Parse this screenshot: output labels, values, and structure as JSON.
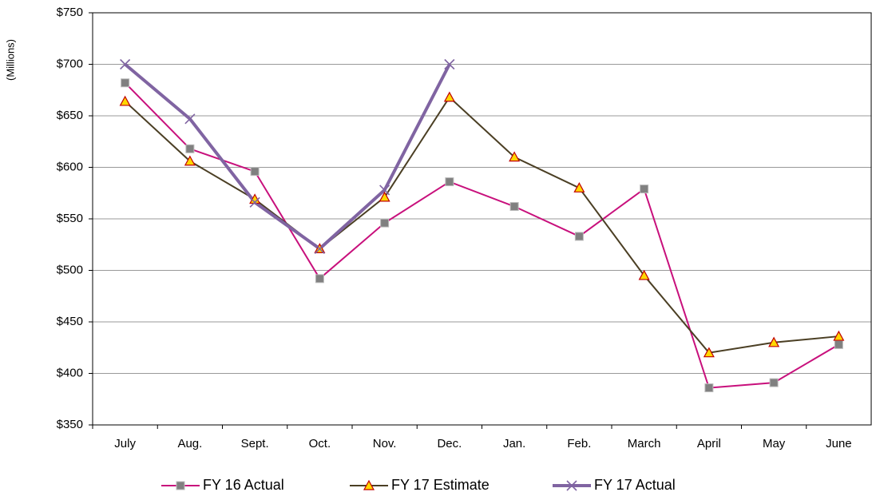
{
  "chart_data": {
    "type": "line",
    "y_label": "(Millions)",
    "categories": [
      "July",
      "Aug.",
      "Sept.",
      "Oct.",
      "Nov.",
      "Dec.",
      "Jan.",
      "Feb.",
      "March",
      "April",
      "May",
      "June"
    ],
    "series": [
      {
        "name": "FY 16 Actual",
        "color": "#c8107c",
        "marker": "square",
        "marker_color": "#808080",
        "values": [
          682,
          618,
          596,
          492,
          546,
          586,
          562,
          533,
          579,
          386,
          391,
          428
        ]
      },
      {
        "name": "FY 17 Estimate",
        "color": "#4b3f24",
        "marker": "triangle",
        "marker_color": "#ffd700",
        "values": [
          664,
          606,
          569,
          521,
          571,
          668,
          610,
          580,
          495,
          420,
          430,
          436
        ]
      },
      {
        "name": "FY 17 Actual",
        "color": "#8064a2",
        "marker": "x",
        "marker_color": "#8064a2",
        "values": [
          700,
          647,
          566,
          521,
          578,
          700,
          null,
          null,
          null,
          null,
          null,
          null
        ]
      }
    ],
    "ylim": [
      350,
      750
    ],
    "yticks": [
      {
        "value": 350,
        "label": "$350"
      },
      {
        "value": 400,
        "label": "$400"
      },
      {
        "value": 450,
        "label": "$450"
      },
      {
        "value": 500,
        "label": "$500"
      },
      {
        "value": 550,
        "label": "$550"
      },
      {
        "value": 600,
        "label": "$600"
      },
      {
        "value": 650,
        "label": "$650"
      },
      {
        "value": 700,
        "label": "$700"
      },
      {
        "value": 750,
        "label": "$750"
      }
    ],
    "grid": true,
    "legend": "bottom"
  }
}
